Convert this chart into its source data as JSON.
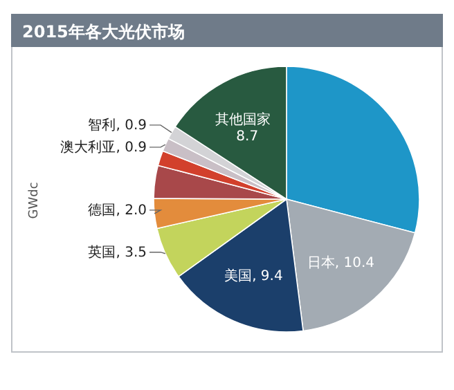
{
  "chart_data": {
    "type": "pie",
    "title": "2015年各大光伏市场",
    "ylabel": "GWdc",
    "categories": [
      null,
      "日本",
      "美国",
      "英国",
      "德国",
      null,
      null,
      "澳大利亚",
      "智利",
      "其他国家"
    ],
    "values": [
      16,
      10.4,
      9.4,
      3.5,
      2.0,
      2.2,
      1.0,
      0.9,
      0.9,
      8.7
    ],
    "value_labels": [
      null,
      "10.4",
      "9.4",
      "3.5",
      "2.0",
      null,
      null,
      "0.9",
      "0.9",
      "8.7"
    ],
    "colors": [
      "#1e96c8",
      "#a3abb3",
      "#1b3f6b",
      "#c3d45c",
      "#e38c3c",
      "#a8484a",
      "#d2402c",
      "#c9bfc6",
      "#d3d3d6",
      "#285a40"
    ]
  }
}
